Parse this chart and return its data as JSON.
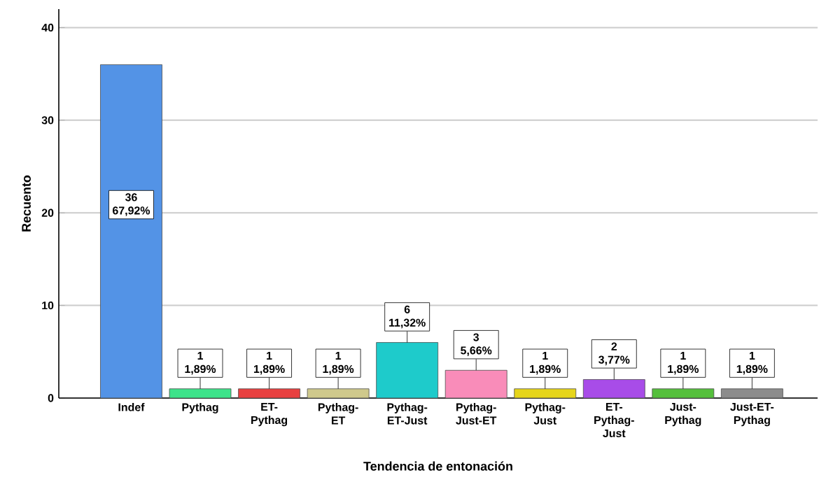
{
  "chart_data": {
    "type": "bar",
    "xlabel": "Tendencia de entonación",
    "ylabel": "Recuento",
    "categories": [
      "Indef",
      "Pythag",
      "ET-Pythag",
      "Pythag-ET",
      "Pythag-ET-Just",
      "Pythag-Just-ET",
      "Pythag-Just",
      "ET-Pythag-Just",
      "Just-Pythag",
      "Just-ET-Pythag"
    ],
    "values": [
      36,
      1,
      1,
      1,
      6,
      3,
      1,
      2,
      1,
      1
    ],
    "colors": [
      "#5393e6",
      "#3de38a",
      "#e84040",
      "#cfc98c",
      "#1ecbcb",
      "#f98cb9",
      "#e6d51a",
      "#a84ce8",
      "#55c03c",
      "#8c8c8c"
    ],
    "value_labels": [
      "36 67,92%",
      "1 1,89%",
      "1 1,89%",
      "1 1,89%",
      "6 11,32%",
      "3 5,66%",
      "1 1,89%",
      "2 3,77%",
      "1 1,89%",
      "1 1,89%"
    ],
    "ylim": [
      0,
      42
    ],
    "yticks": [
      0,
      10,
      20,
      30,
      40
    ],
    "grid": "y"
  }
}
